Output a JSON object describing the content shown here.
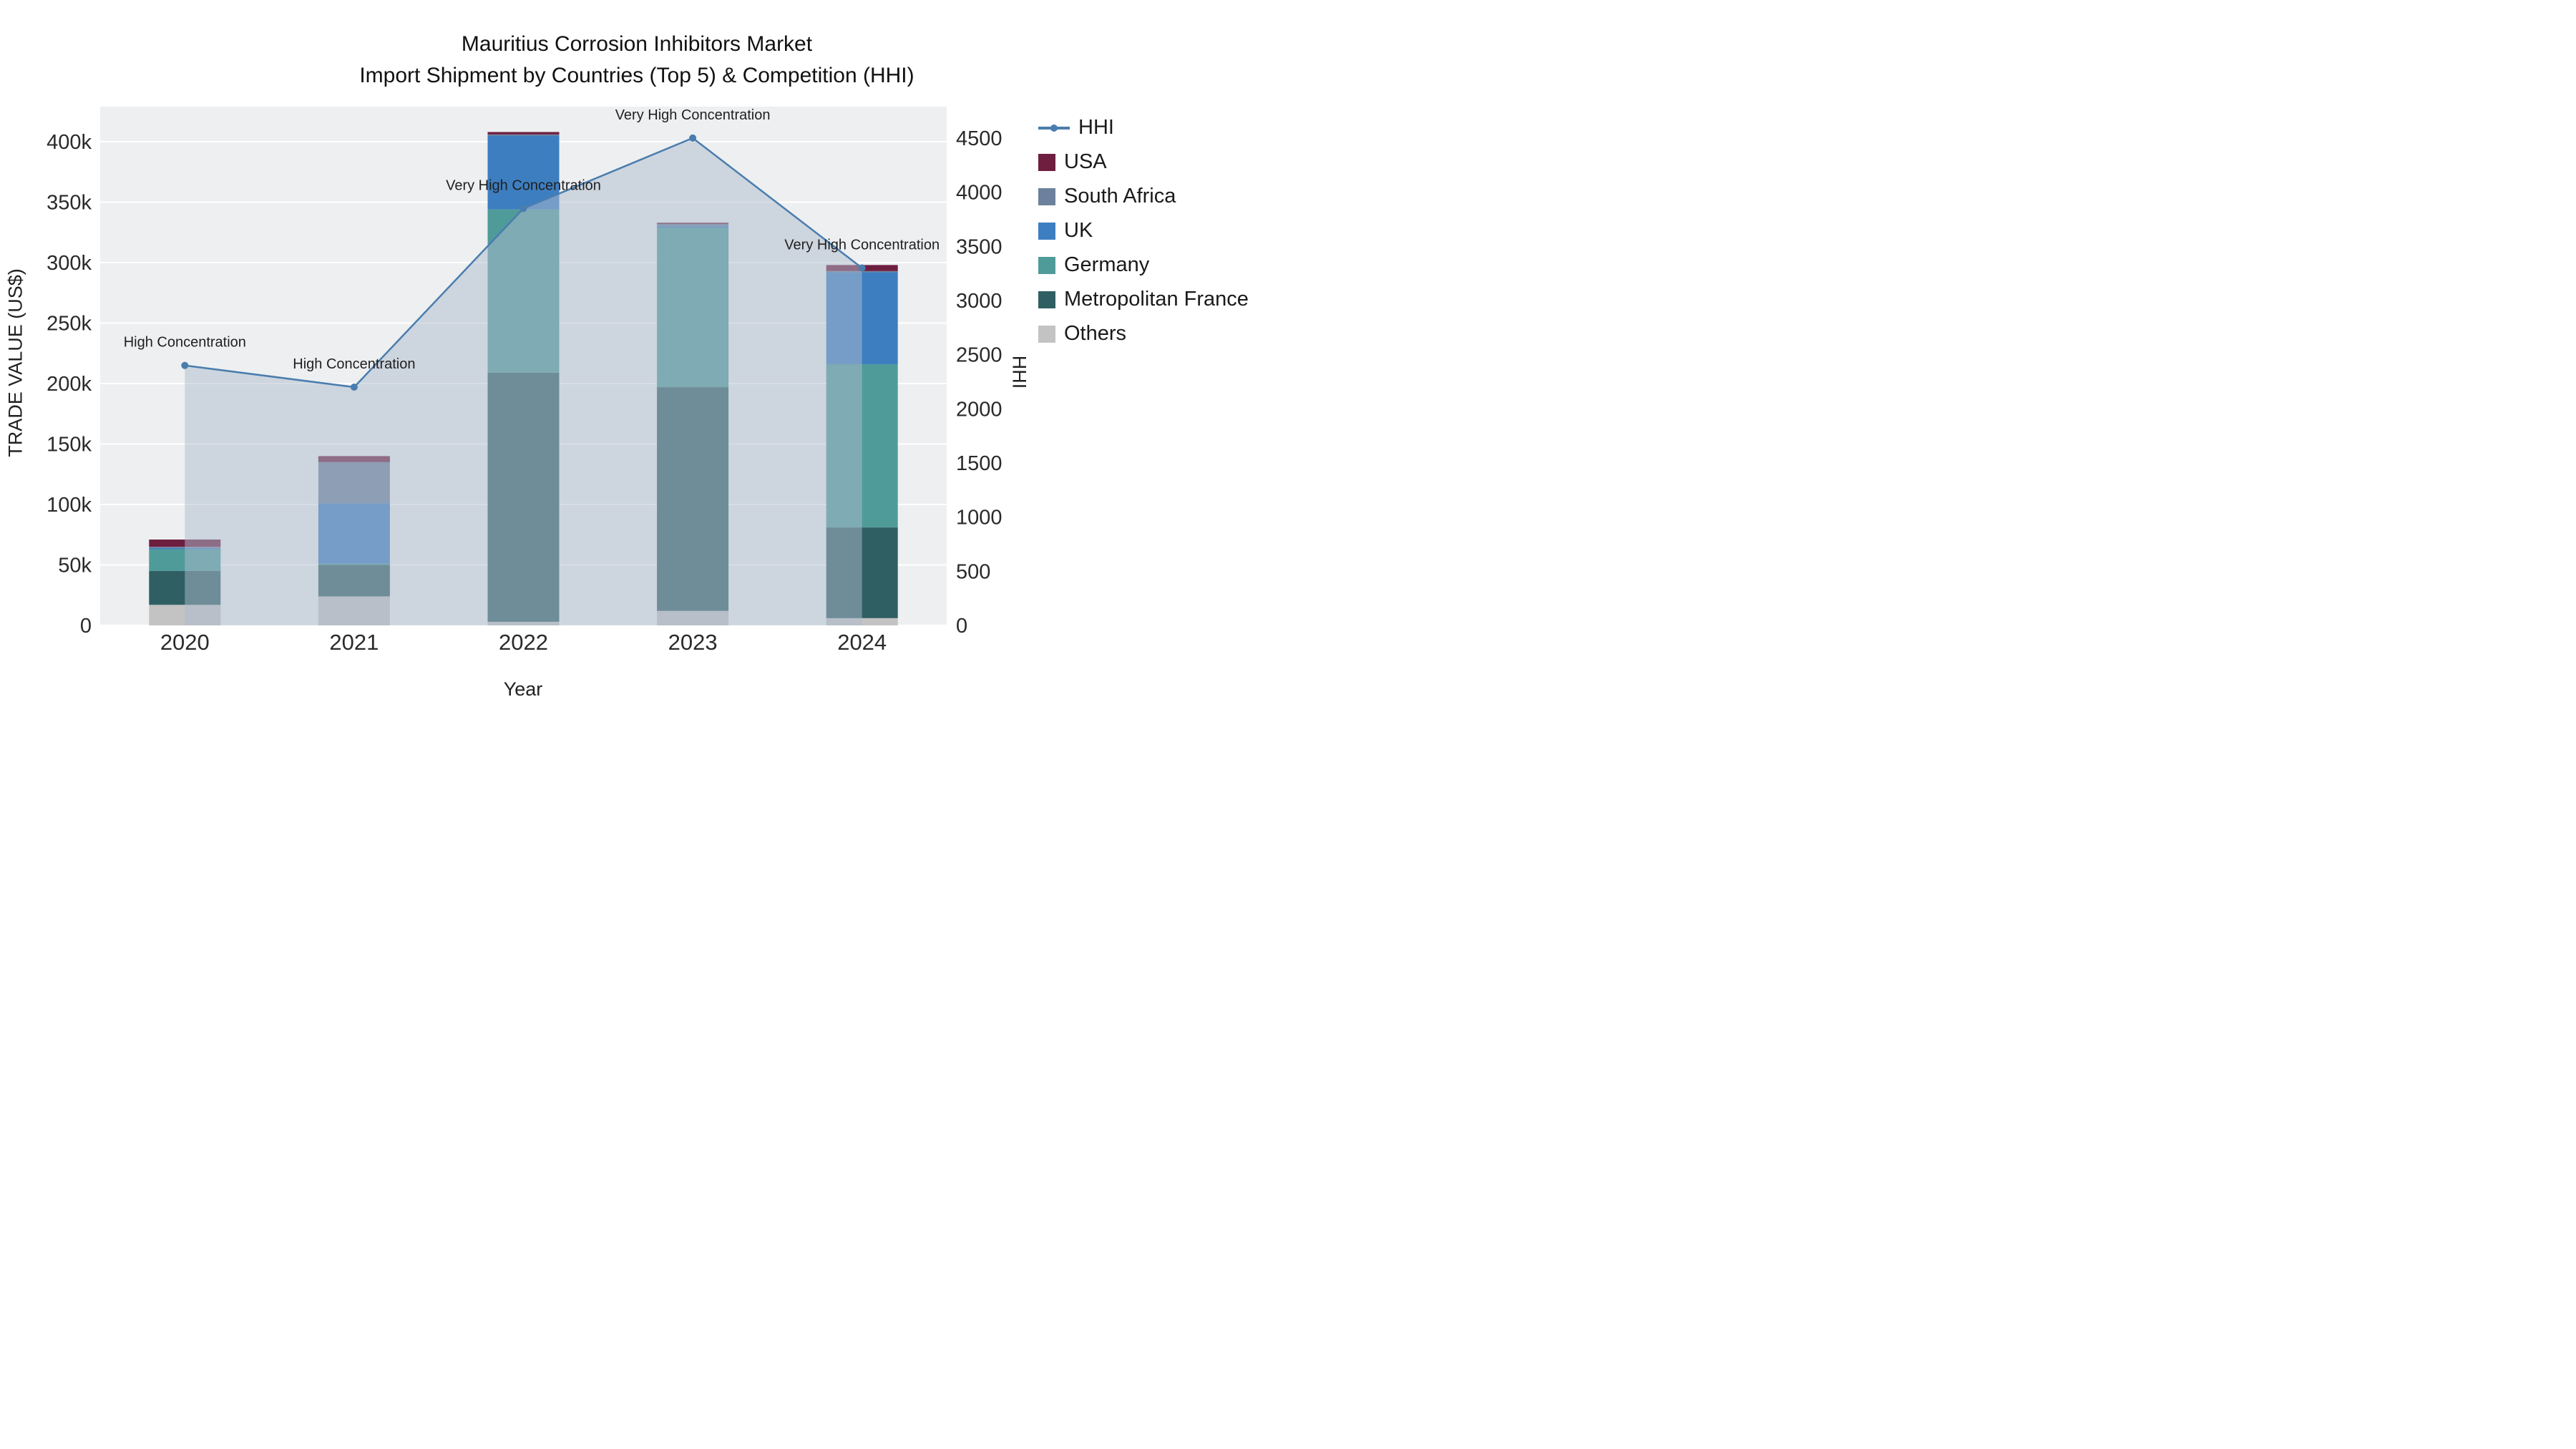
{
  "title": {
    "line1": "Mauritius Corrosion Inhibitors Market",
    "line2": "Import Shipment by Countries (Top 5) & Competition (HHI)"
  },
  "axes": {
    "y_left_title": "TRADE VALUE (US$)",
    "y_right_title": "HHI",
    "x_title": "Year",
    "y_left_ticks": [
      {
        "v": 0,
        "label": "0"
      },
      {
        "v": 50000,
        "label": "50k"
      },
      {
        "v": 100000,
        "label": "100k"
      },
      {
        "v": 150000,
        "label": "150k"
      },
      {
        "v": 200000,
        "label": "200k"
      },
      {
        "v": 250000,
        "label": "250k"
      },
      {
        "v": 300000,
        "label": "300k"
      },
      {
        "v": 350000,
        "label": "350k"
      },
      {
        "v": 400000,
        "label": "400k"
      }
    ],
    "y_right_ticks": [
      {
        "v": 0,
        "label": "0"
      },
      {
        "v": 500,
        "label": "500"
      },
      {
        "v": 1000,
        "label": "1000"
      },
      {
        "v": 1500,
        "label": "1500"
      },
      {
        "v": 2000,
        "label": "2000"
      },
      {
        "v": 2500,
        "label": "2500"
      },
      {
        "v": 3000,
        "label": "3000"
      },
      {
        "v": 3500,
        "label": "3500"
      },
      {
        "v": 4000,
        "label": "4000"
      },
      {
        "v": 4500,
        "label": "4500"
      }
    ],
    "x_ticks": [
      "2020",
      "2021",
      "2022",
      "2023",
      "2024"
    ]
  },
  "legend": {
    "items": [
      {
        "label": "HHI",
        "type": "line",
        "color": "#4a7dae"
      },
      {
        "label": "USA",
        "type": "square",
        "color": "#6e1e3f"
      },
      {
        "label": "South Africa",
        "type": "square",
        "color": "#6d819c"
      },
      {
        "label": "UK",
        "type": "square",
        "color": "#3d7ec0"
      },
      {
        "label": "Germany",
        "type": "square",
        "color": "#4f9b9a"
      },
      {
        "label": "Metropolitan France",
        "type": "square",
        "color": "#2f5f63"
      },
      {
        "label": "Others",
        "type": "square",
        "color": "#c3c3c3"
      }
    ]
  },
  "colors": {
    "plot_bg": "#edeff1",
    "grid": "#ffffff",
    "hhi_line": "#4a7dae",
    "hhi_area_fill": "rgba(174,188,206,0.5)"
  },
  "chart_data": {
    "type": "combo: stacked-bar (left axis) + line-area (right axis)",
    "title": "Mauritius Corrosion Inhibitors Market — Import Shipment by Countries (Top 5) & Competition (HHI)",
    "xlabel": "Year",
    "ylabel_left": "TRADE VALUE (US$)",
    "ylabel_right": "HHI",
    "categories": [
      "2020",
      "2021",
      "2022",
      "2023",
      "2024"
    ],
    "bar_series": [
      {
        "name": "USA",
        "color": "#6e1e3f",
        "values": [
          6000,
          5000,
          2000,
          1000,
          5000
        ]
      },
      {
        "name": "South Africa",
        "color": "#6d819c",
        "values": [
          1000,
          34000,
          1000,
          2000,
          1000
        ]
      },
      {
        "name": "UK",
        "color": "#3d7ec0",
        "values": [
          1000,
          50000,
          61000,
          1000,
          76000
        ]
      },
      {
        "name": "Germany",
        "color": "#4f9b9a",
        "values": [
          18000,
          1000,
          135000,
          132000,
          135000
        ]
      },
      {
        "name": "Metropolitan France",
        "color": "#2f5f63",
        "values": [
          28000,
          26000,
          206000,
          185000,
          75000
        ]
      },
      {
        "name": "Others",
        "color": "#c3c3c3",
        "values": [
          17000,
          24000,
          3000,
          12000,
          6000
        ]
      }
    ],
    "bar_totals": [
      71000,
      140000,
      408000,
      333000,
      298000
    ],
    "line_series": {
      "name": "HHI",
      "axis": "right",
      "color": "#4a7dae",
      "area_fill": "rgba(174,188,206,0.5)",
      "values": [
        2400,
        2200,
        3850,
        4500,
        3300
      ]
    },
    "annotations": [
      "High Concentration",
      "High Concentration",
      "Very High Concentration",
      "Very High Concentration",
      "Very High Concentration"
    ],
    "y_left_range": [
      0,
      429000
    ],
    "y_right_range": [
      0,
      4790
    ],
    "grid": true,
    "legend_position": "right"
  }
}
